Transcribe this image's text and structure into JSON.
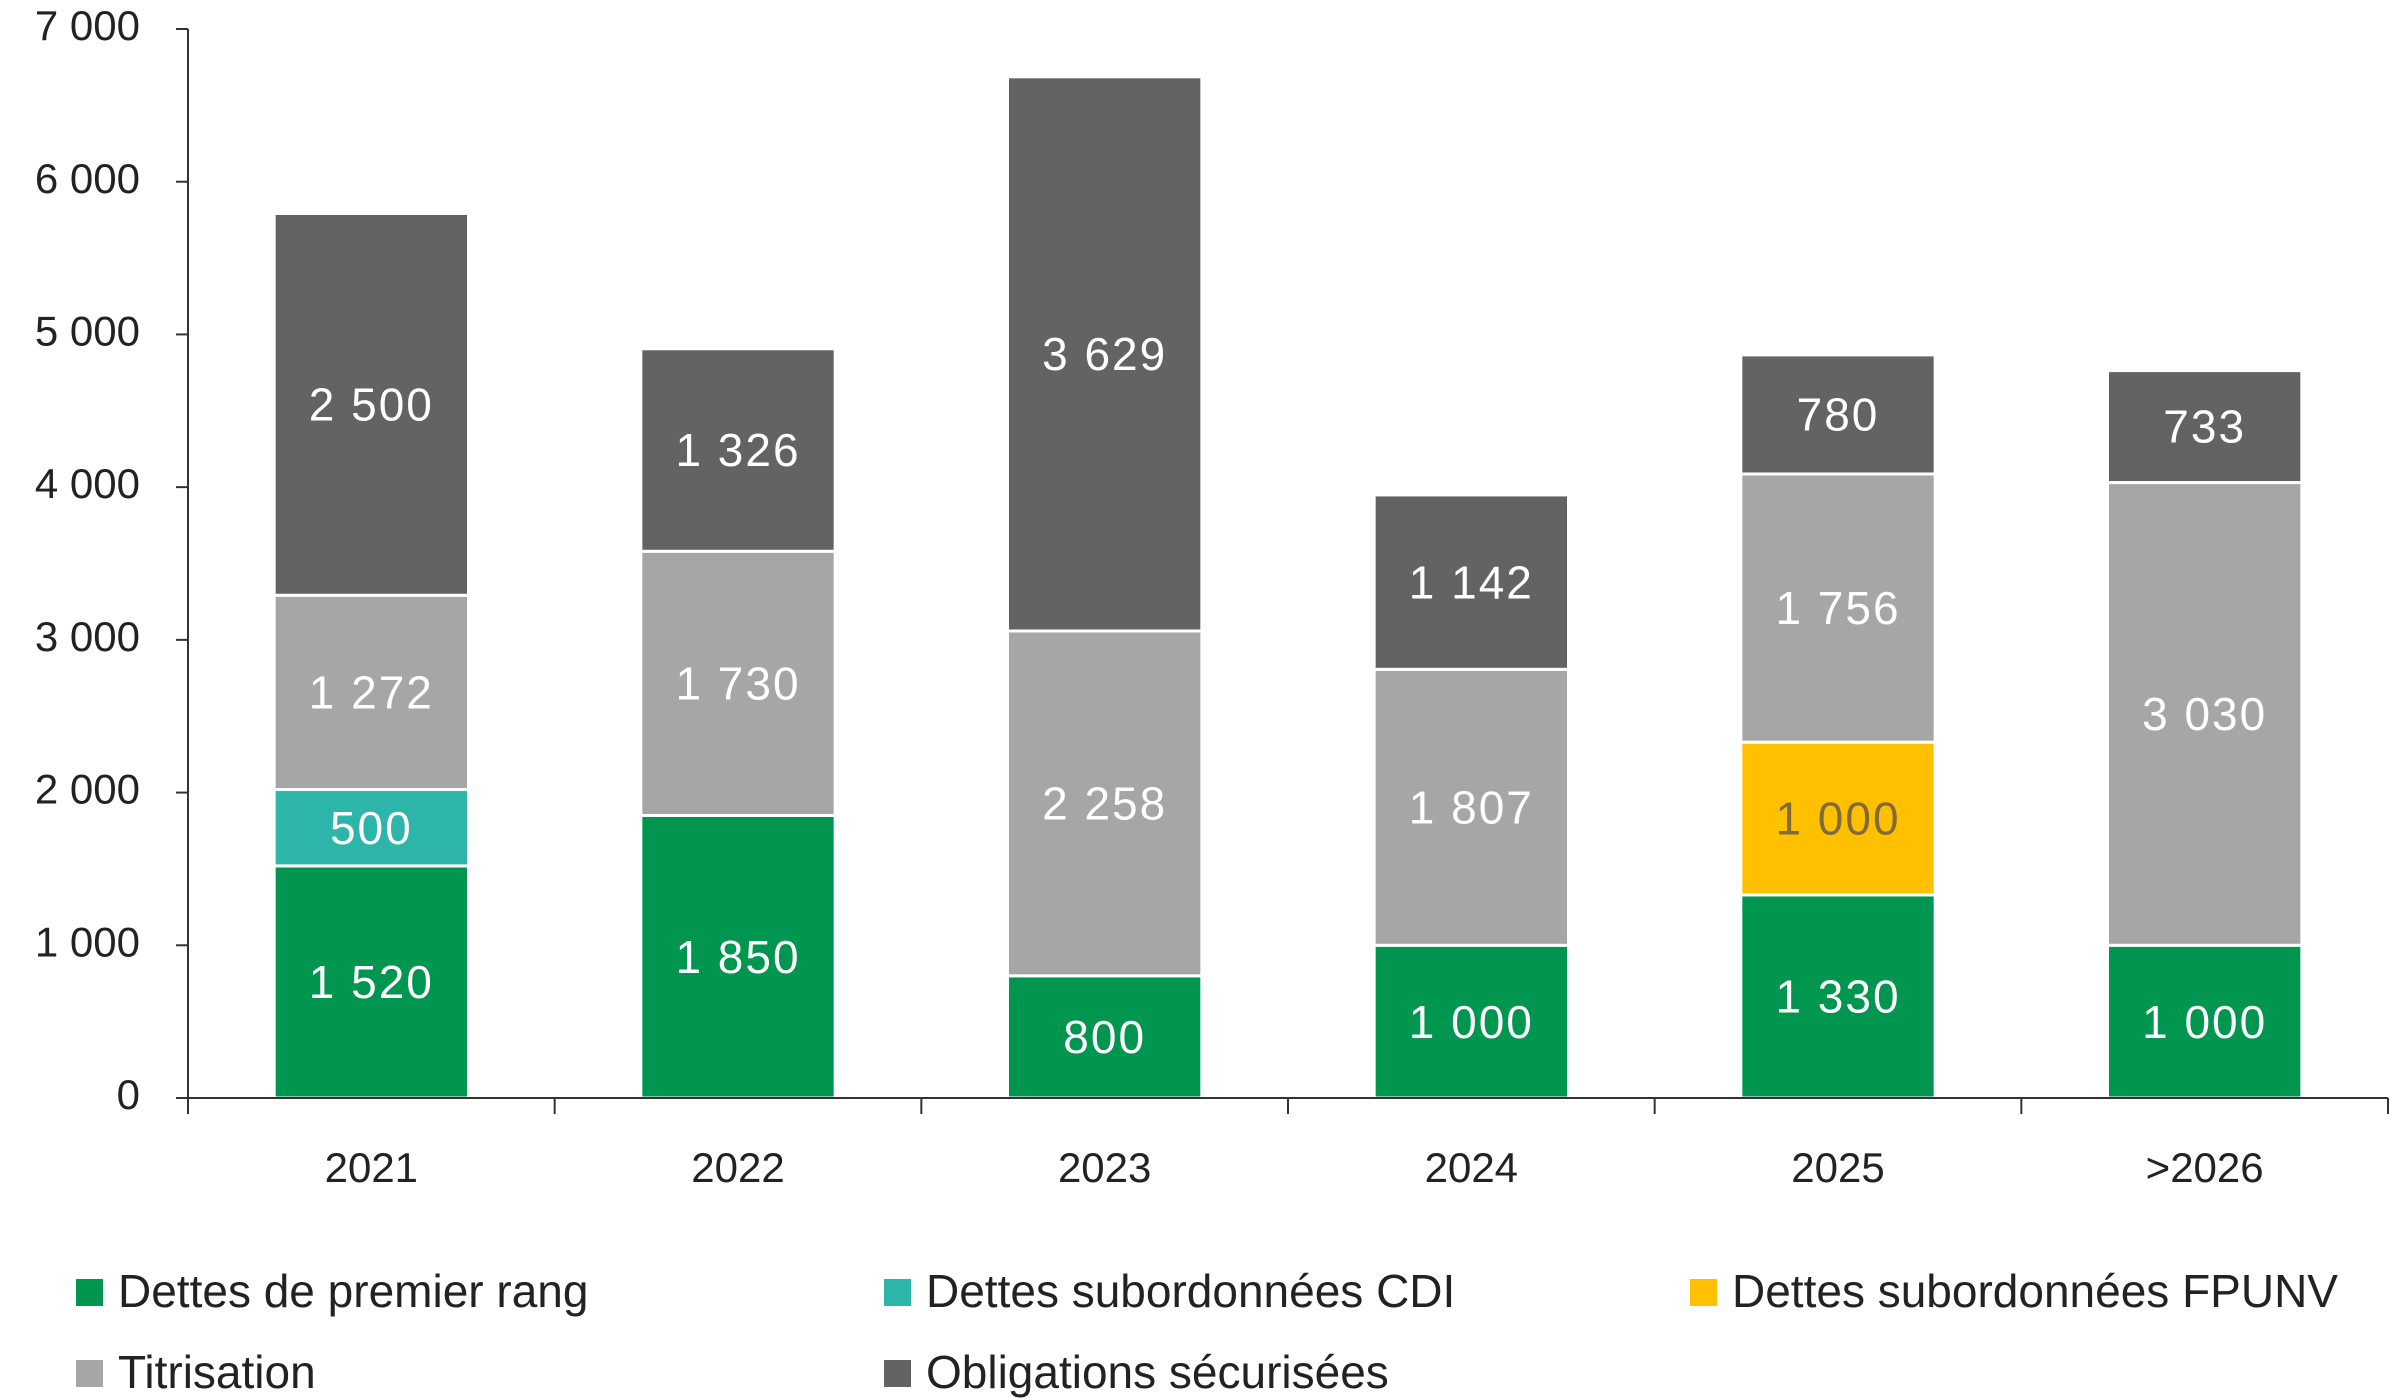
{
  "chart_data": {
    "type": "stacked_bar",
    "categories": [
      "2021",
      "2022",
      "2023",
      "2024",
      "2025",
      ">2026"
    ],
    "series": [
      {
        "name": "Dettes de premier rang",
        "color": "#00964f",
        "label_color": "#ffffff",
        "values": [
          1520,
          1850,
          800,
          1000,
          1330,
          1000
        ],
        "value_labels": [
          "1 520",
          "1 850",
          "800",
          "1 000",
          "1 330",
          "1 000"
        ]
      },
      {
        "name": "Dettes subordonnées CDI",
        "color": "#2db5a9",
        "label_color": "#ffffff",
        "values": [
          500,
          null,
          null,
          null,
          null,
          null
        ],
        "value_labels": [
          "500",
          null,
          null,
          null,
          null,
          null
        ]
      },
      {
        "name": "Dettes subordonnées FPUNV",
        "color": "#ffc000",
        "label_color": "#7f6a3a",
        "values": [
          null,
          null,
          null,
          null,
          1000,
          null
        ],
        "value_labels": [
          null,
          null,
          null,
          null,
          "1 000",
          null
        ]
      },
      {
        "name": "Titrisation",
        "color": "#a6a6a6",
        "label_color": "#ffffff",
        "values": [
          1272,
          1730,
          2258,
          1807,
          1756,
          3030
        ],
        "value_labels": [
          "1 272",
          "1 730",
          "2 258",
          "1 807",
          "1 756",
          "3 030"
        ]
      },
      {
        "name": "Obligations sécurisées",
        "color": "#636363",
        "label_color": "#ffffff",
        "values": [
          2500,
          1326,
          3629,
          1142,
          780,
          733
        ],
        "value_labels": [
          "2 500",
          "1 326",
          "3 629",
          "1 142",
          "780",
          "733"
        ]
      }
    ],
    "ylim": [
      0,
      7000
    ],
    "yticks": [
      0,
      {
        "value": 1000,
        "label": "1 000"
      },
      {
        "value": 2000,
        "label": "2 000"
      },
      {
        "value": 3000,
        "label": "3 000"
      },
      {
        "value": 4000,
        "label": "4 000"
      },
      {
        "value": 5000,
        "label": "5 000"
      },
      {
        "value": 6000,
        "label": "6 000"
      },
      {
        "value": 7000,
        "label": "7 000"
      }
    ],
    "grid": false,
    "legend": "bottom"
  }
}
